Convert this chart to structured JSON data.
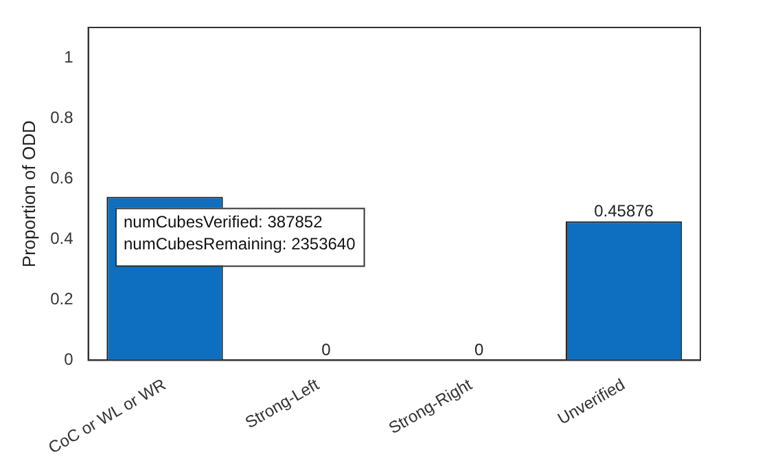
{
  "chart_data": {
    "type": "bar",
    "ylabel": "Proportion of ODD",
    "categories": [
      "CoC or WL or WR",
      "Strong-Left",
      "Strong-Right",
      "Unverified"
    ],
    "values": [
      0.54,
      0,
      0,
      0.45876
    ],
    "value_labels": [
      null,
      "0",
      "0",
      "0.45876"
    ],
    "color": "#0e6fc0",
    "ylim": [
      0,
      1.1
    ],
    "yticks": [
      0,
      0.2,
      0.4,
      0.6,
      0.8,
      1
    ],
    "grid": false,
    "legend": false,
    "annotations": [
      "numCubesVerified: 387852",
      "numCubesRemaining: 2353640"
    ]
  }
}
